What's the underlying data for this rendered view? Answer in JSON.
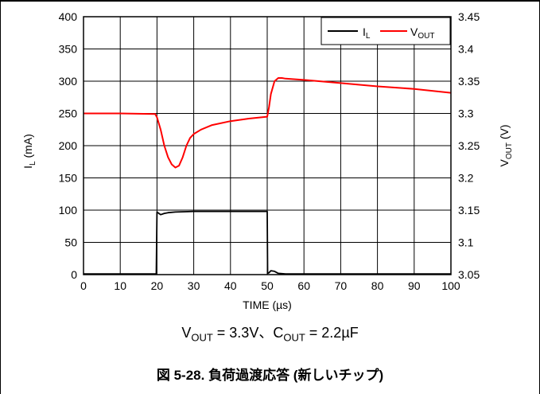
{
  "chart_data": {
    "type": "line",
    "xlabel": "TIME (µs)",
    "ylabel_left": "IL (mA)",
    "ylabel_right": "VOUT (V)",
    "xlim": [
      0,
      100
    ],
    "ylim_left": [
      0,
      400
    ],
    "ylim_right": [
      3.05,
      3.45
    ],
    "x_ticks": [
      "0",
      "10",
      "20",
      "30",
      "40",
      "50",
      "60",
      "70",
      "80",
      "90",
      "100"
    ],
    "y_left_ticks": [
      "0",
      "50",
      "100",
      "150",
      "200",
      "250",
      "300",
      "350",
      "400"
    ],
    "y_right_ticks": [
      "3.05",
      "3.1",
      "3.15",
      "3.2",
      "3.25",
      "3.3",
      "3.35",
      "3.4",
      "3.45"
    ],
    "grid": true,
    "legend_position": "top-right",
    "series": [
      {
        "name": "IL",
        "axis": "left",
        "color": "#000000",
        "x": [
          0,
          19.8,
          20,
          21,
          22,
          23,
          25,
          30,
          35,
          40,
          45,
          50,
          50.1,
          50.5,
          51,
          52,
          53,
          55,
          60,
          70,
          80,
          90,
          100
        ],
        "y": [
          1,
          1,
          97,
          93,
          95,
          96,
          97,
          98,
          98,
          98,
          98,
          98,
          2,
          3,
          6,
          5,
          2,
          1,
          1,
          1,
          1,
          1,
          1
        ]
      },
      {
        "name": "VOUT",
        "axis": "right",
        "color": "#ff0000",
        "x": [
          0,
          10,
          19.5,
          20,
          21,
          22,
          23,
          24,
          25,
          26,
          27,
          28,
          29,
          30,
          32,
          35,
          40,
          45,
          50,
          50.5,
          51,
          52,
          53,
          54,
          55,
          60,
          70,
          80,
          90,
          100
        ],
        "y": [
          3.3,
          3.3,
          3.299,
          3.294,
          3.275,
          3.25,
          3.232,
          3.221,
          3.216,
          3.219,
          3.232,
          3.25,
          3.262,
          3.268,
          3.275,
          3.282,
          3.288,
          3.292,
          3.295,
          3.31,
          3.33,
          3.35,
          3.355,
          3.355,
          3.354,
          3.352,
          3.347,
          3.342,
          3.338,
          3.332
        ]
      }
    ]
  },
  "legend": {
    "il_main": "I",
    "il_sub": "L",
    "vout_main": "V",
    "vout_sub": "OUT"
  },
  "axes_text": {
    "xlabel": "TIME (µs)",
    "ylabel_left_main": "I",
    "ylabel_left_sub": "L",
    "ylabel_left_unit": " (mA)",
    "ylabel_right_main": "V",
    "ylabel_right_sub": "OUT",
    "ylabel_right_unit": " (V)"
  },
  "condition_text": "VOUT = 3.3V、COUT = 2.2µF",
  "condition": {
    "v": "V",
    "v_sub": "OUT",
    "v_rest": " = 3.3V、C",
    "c_sub": "OUT",
    "c_rest": " = 2.2µF"
  },
  "figure_caption": "図 5-28. 負荷過渡応答 (新しいチップ)"
}
